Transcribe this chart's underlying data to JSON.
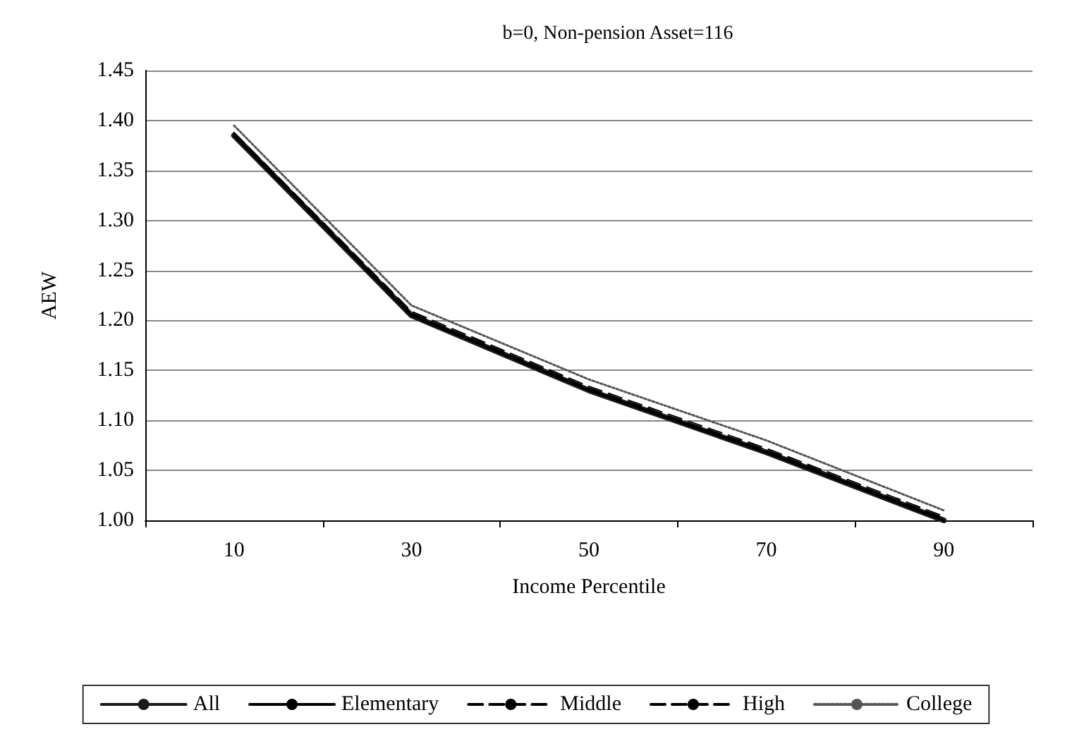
{
  "chart_data": {
    "type": "line",
    "title": "b=0, Non-pension Asset=116",
    "xlabel": "Income Percentile",
    "ylabel": "AEW",
    "categories": [
      "10",
      "30",
      "50",
      "70",
      "90"
    ],
    "ylim": [
      1.0,
      1.45
    ],
    "yticks": [
      {
        "value": 1.0,
        "label": "1.00"
      },
      {
        "value": 1.05,
        "label": "1.05"
      },
      {
        "value": 1.1,
        "label": "1.10"
      },
      {
        "value": 1.15,
        "label": "1.15"
      },
      {
        "value": 1.2,
        "label": "1.20"
      },
      {
        "value": 1.25,
        "label": "1.25"
      },
      {
        "value": 1.3,
        "label": "1.30"
      },
      {
        "value": 1.35,
        "label": "1.35"
      },
      {
        "value": 1.4,
        "label": "1.40"
      },
      {
        "value": 1.45,
        "label": "1.45"
      }
    ],
    "grid": "y",
    "legend": "bottom",
    "marker": "none",
    "series": [
      {
        "name": "All",
        "color": "#1a1a1a",
        "line_style": "solid",
        "values": [
          1.385,
          1.205,
          1.13,
          1.068,
          1.0
        ]
      },
      {
        "name": "Elementary",
        "color": "#000000",
        "line_style": "solid",
        "values": [
          1.385,
          1.205,
          1.13,
          1.068,
          1.0
        ]
      },
      {
        "name": "Middle",
        "color": "#000000",
        "line_style": "dashed",
        "values": [
          1.387,
          1.207,
          1.132,
          1.07,
          1.002
        ]
      },
      {
        "name": "High",
        "color": "#000000",
        "line_style": "dashed",
        "values": [
          1.388,
          1.209,
          1.134,
          1.072,
          1.004
        ]
      },
      {
        "name": "College",
        "color": "#555555",
        "line_style": "dotted",
        "values": [
          1.395,
          1.215,
          1.141,
          1.08,
          1.01
        ]
      }
    ]
  }
}
